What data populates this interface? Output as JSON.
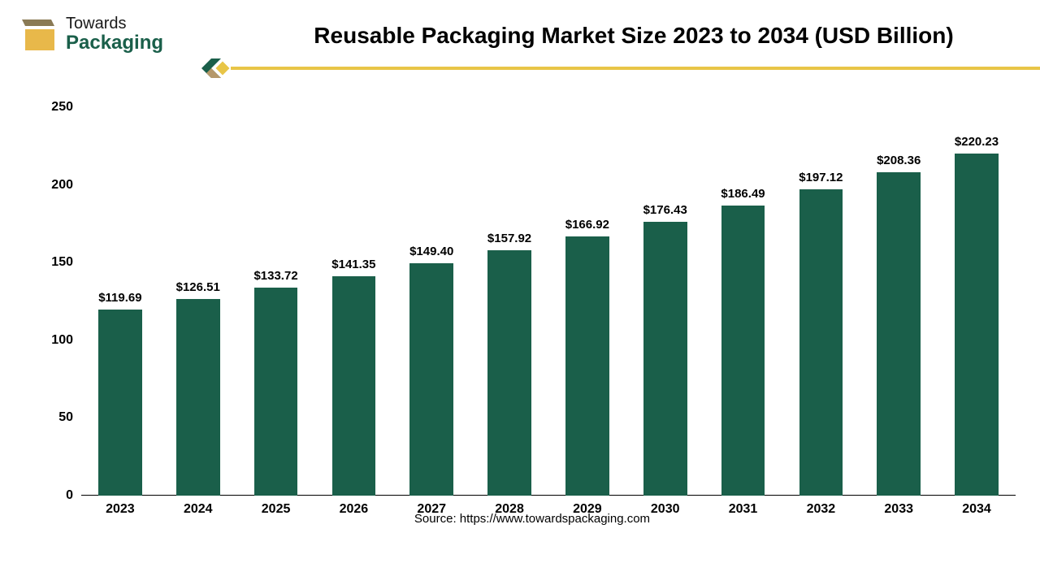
{
  "logo": {
    "top_text": "Towards",
    "bottom_text": "Packaging",
    "box_color": "#e8b84a",
    "lid_color": "#8a7a55",
    "text_top_color": "#1a1a1a",
    "text_bottom_color": "#1a5f4a"
  },
  "title": "Reusable Packaging Market Size 2023 to 2034 (USD Billion)",
  "divider": {
    "line_color": "#e8c547",
    "chevron_green": "#1a5f4a",
    "chevron_tan": "#b5986a",
    "diamond_color": "#e8c547"
  },
  "chart": {
    "type": "bar",
    "categories": [
      "2023",
      "2024",
      "2025",
      "2026",
      "2027",
      "2028",
      "2029",
      "2030",
      "2031",
      "2032",
      "2033",
      "2034"
    ],
    "values": [
      119.69,
      126.51,
      133.72,
      141.35,
      149.4,
      157.92,
      166.92,
      176.43,
      186.49,
      197.12,
      208.36,
      220.23
    ],
    "value_labels": [
      "$119.69",
      "$126.51",
      "$133.72",
      "$141.35",
      "$149.40",
      "$157.92",
      "$166.92",
      "$176.43",
      "$186.49",
      "$197.12",
      "$208.36",
      "$220.23"
    ],
    "bar_color": "#1a5f4a",
    "background_color": "#ffffff",
    "ylim": [
      0,
      250
    ],
    "ytick_step": 50,
    "yticks": [
      0,
      50,
      100,
      150,
      200,
      250
    ],
    "axis_color": "#000000",
    "label_fontsize": 15,
    "tick_fontsize": 16,
    "bar_width_ratio": 0.56
  },
  "source": "Source: https://www.towardspackaging.com"
}
